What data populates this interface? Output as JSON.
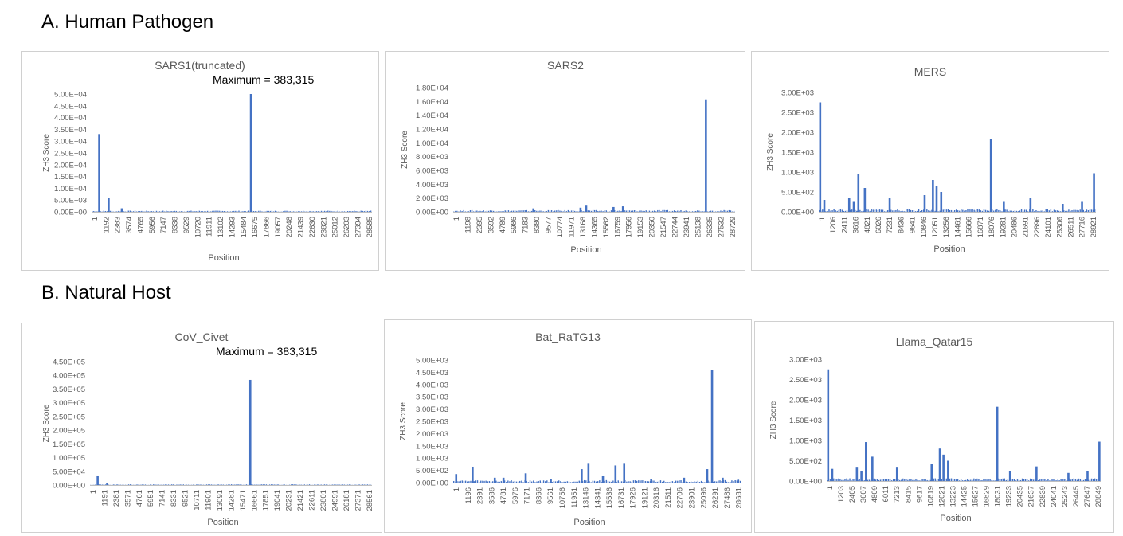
{
  "sections": [
    {
      "title": "A. Human Pathogen"
    },
    {
      "title": "B. Natural Host"
    }
  ],
  "colors": {
    "series": "#4472c4",
    "axis": "#bfbfbf",
    "text": "#595959"
  },
  "chart_data": [
    {
      "type": "bar",
      "title": "SARS1(truncated)",
      "annotation": "Maximum = 383,315",
      "xlabel": "Position",
      "ylabel": "ZH3 Score",
      "ylim": [
        0,
        50000
      ],
      "yticks": [
        "0.00E+00",
        "5.00E+03",
        "1.00E+04",
        "1.50E+04",
        "2.00E+04",
        "2.50E+04",
        "3.00E+04",
        "3.50E+04",
        "4.00E+04",
        "4.50E+04",
        "5.00E+04"
      ],
      "xticks": [
        "1",
        "1192",
        "2383",
        "3574",
        "4765",
        "5956",
        "7147",
        "8338",
        "9529",
        "10720",
        "11911",
        "13102",
        "14293",
        "15484",
        "16675",
        "17866",
        "19057",
        "20248",
        "21439",
        "22630",
        "23821",
        "25012",
        "26203",
        "27394",
        "28585"
      ],
      "x_max": 29751,
      "baseline": 300,
      "peaks": [
        [
          800,
          33000
        ],
        [
          1800,
          6000
        ],
        [
          3200,
          1500
        ],
        [
          16900,
          50000
        ]
      ]
    },
    {
      "type": "bar",
      "title": "SARS2",
      "annotation": "",
      "xlabel": "Position",
      "ylabel": "ZH3 Score",
      "ylim": [
        0,
        18000
      ],
      "yticks": [
        "0.00E+00",
        "2.00E+03",
        "4.00E+03",
        "6.00E+03",
        "8.00E+03",
        "1.00E+04",
        "1.20E+04",
        "1.40E+04",
        "1.60E+04",
        "1.80E+04"
      ],
      "xticks": [
        "1",
        "1198",
        "2395",
        "3592",
        "4789",
        "5986",
        "7183",
        "8380",
        "9577",
        "10774",
        "11971",
        "13168",
        "14365",
        "15562",
        "16759",
        "17956",
        "19153",
        "20350",
        "21547",
        "22744",
        "23941",
        "25138",
        "26335",
        "27532",
        "28729"
      ],
      "x_max": 29903,
      "baseline": 150,
      "peaks": [
        [
          8500,
          500
        ],
        [
          13500,
          600
        ],
        [
          14100,
          900
        ],
        [
          17000,
          700
        ],
        [
          18000,
          800
        ],
        [
          26800,
          16300
        ]
      ]
    },
    {
      "type": "bar",
      "title": "MERS",
      "annotation": "",
      "xlabel": "Position",
      "ylabel": "ZH3 Score",
      "ylim": [
        0,
        3000
      ],
      "yticks": [
        "0.00E+00",
        "5.00E+02",
        "1.00E+03",
        "1.50E+03",
        "2.00E+03",
        "2.50E+03",
        "3.00E+03"
      ],
      "xticks": [
        "1",
        "1206",
        "2411",
        "3616",
        "4821",
        "6026",
        "7231",
        "8436",
        "9641",
        "10846",
        "12051",
        "13256",
        "14461",
        "15666",
        "16871",
        "18076",
        "19281",
        "20486",
        "21691",
        "22896",
        "24101",
        "25306",
        "26511",
        "27716",
        "28921"
      ],
      "x_max": 30119,
      "baseline": 40,
      "peaks": [
        [
          150,
          2750
        ],
        [
          600,
          300
        ],
        [
          3300,
          350
        ],
        [
          3800,
          250
        ],
        [
          4300,
          950
        ],
        [
          5000,
          600
        ],
        [
          7700,
          350
        ],
        [
          11500,
          420
        ],
        [
          12400,
          800
        ],
        [
          12800,
          650
        ],
        [
          13300,
          500
        ],
        [
          18700,
          1830
        ],
        [
          20100,
          250
        ],
        [
          23000,
          360
        ],
        [
          26500,
          200
        ],
        [
          28600,
          250
        ],
        [
          29900,
          970
        ]
      ]
    },
    {
      "type": "bar",
      "title": "CoV_Civet",
      "annotation": "Maximum = 383,315",
      "xlabel": "Position",
      "ylabel": "ZH3 Score",
      "ylim": [
        0,
        450000
      ],
      "yticks": [
        "0.00E+00",
        "5.00E+04",
        "1.00E+05",
        "1.50E+05",
        "2.00E+05",
        "2.50E+05",
        "3.00E+05",
        "3.50E+05",
        "4.00E+05",
        "4.50E+05"
      ],
      "xticks": [
        "1",
        "1191",
        "2381",
        "3571",
        "4761",
        "5951",
        "7141",
        "8331",
        "9521",
        "10711",
        "11901",
        "13091",
        "14281",
        "15471",
        "16661",
        "17851",
        "19041",
        "20231",
        "21421",
        "22611",
        "23801",
        "24991",
        "26181",
        "27371",
        "28561"
      ],
      "x_max": 29740,
      "baseline": 1500,
      "peaks": [
        [
          800,
          32000
        ],
        [
          1800,
          8000
        ],
        [
          16900,
          383315
        ]
      ]
    },
    {
      "type": "bar",
      "title": "Bat_RaTG13",
      "annotation": "",
      "xlabel": "Position",
      "ylabel": "ZH3 Score",
      "ylim": [
        0,
        5000
      ],
      "yticks": [
        "0.00E+00",
        "5.00E+02",
        "1.00E+03",
        "1.50E+03",
        "2.00E+03",
        "2.50E+03",
        "3.00E+03",
        "3.50E+03",
        "4.00E+03",
        "4.50E+03",
        "5.00E+03"
      ],
      "xticks": [
        "1",
        "1196",
        "2391",
        "3586",
        "4781",
        "5976",
        "7171",
        "8366",
        "9561",
        "10756",
        "11951",
        "13146",
        "14341",
        "15536",
        "16731",
        "17926",
        "19121",
        "20316",
        "21511",
        "22706",
        "23901",
        "25096",
        "26291",
        "27486",
        "28681"
      ],
      "x_max": 29855,
      "baseline": 60,
      "peaks": [
        [
          300,
          350
        ],
        [
          2000,
          650
        ],
        [
          4300,
          200
        ],
        [
          5200,
          200
        ],
        [
          7500,
          380
        ],
        [
          10100,
          150
        ],
        [
          13300,
          550
        ],
        [
          14000,
          800
        ],
        [
          15500,
          260
        ],
        [
          16800,
          700
        ],
        [
          17700,
          800
        ],
        [
          20500,
          150
        ],
        [
          23900,
          200
        ],
        [
          26300,
          550
        ],
        [
          26800,
          4600
        ],
        [
          27900,
          200
        ],
        [
          29500,
          120
        ]
      ]
    },
    {
      "type": "bar",
      "title": "Llama_Qatar15",
      "annotation": "",
      "xlabel": "Position",
      "ylabel": "ZH3 Score",
      "ylim": [
        0,
        3000
      ],
      "yticks": [
        "0.00E+00",
        "5.00E+02",
        "1.00E+03",
        "1.50E+03",
        "2.00E+03",
        "2.50E+03",
        "3.00E+03"
      ],
      "xticks": [
        "1",
        "1203",
        "2405",
        "3607",
        "4809",
        "6011",
        "7213",
        "8415",
        "9617",
        "10819",
        "12021",
        "13223",
        "14425",
        "15627",
        "16829",
        "18031",
        "19233",
        "20435",
        "21637",
        "22839",
        "24041",
        "25243",
        "26445",
        "27647",
        "28849"
      ],
      "x_max": 30052,
      "baseline": 40,
      "peaks": [
        [
          150,
          2750
        ],
        [
          600,
          300
        ],
        [
          3300,
          350
        ],
        [
          3800,
          250
        ],
        [
          4300,
          960
        ],
        [
          5000,
          600
        ],
        [
          7700,
          350
        ],
        [
          11500,
          420
        ],
        [
          12400,
          800
        ],
        [
          12800,
          650
        ],
        [
          13300,
          500
        ],
        [
          18700,
          1830
        ],
        [
          20100,
          250
        ],
        [
          23000,
          360
        ],
        [
          26500,
          200
        ],
        [
          28600,
          250
        ],
        [
          29900,
          970
        ]
      ]
    }
  ]
}
